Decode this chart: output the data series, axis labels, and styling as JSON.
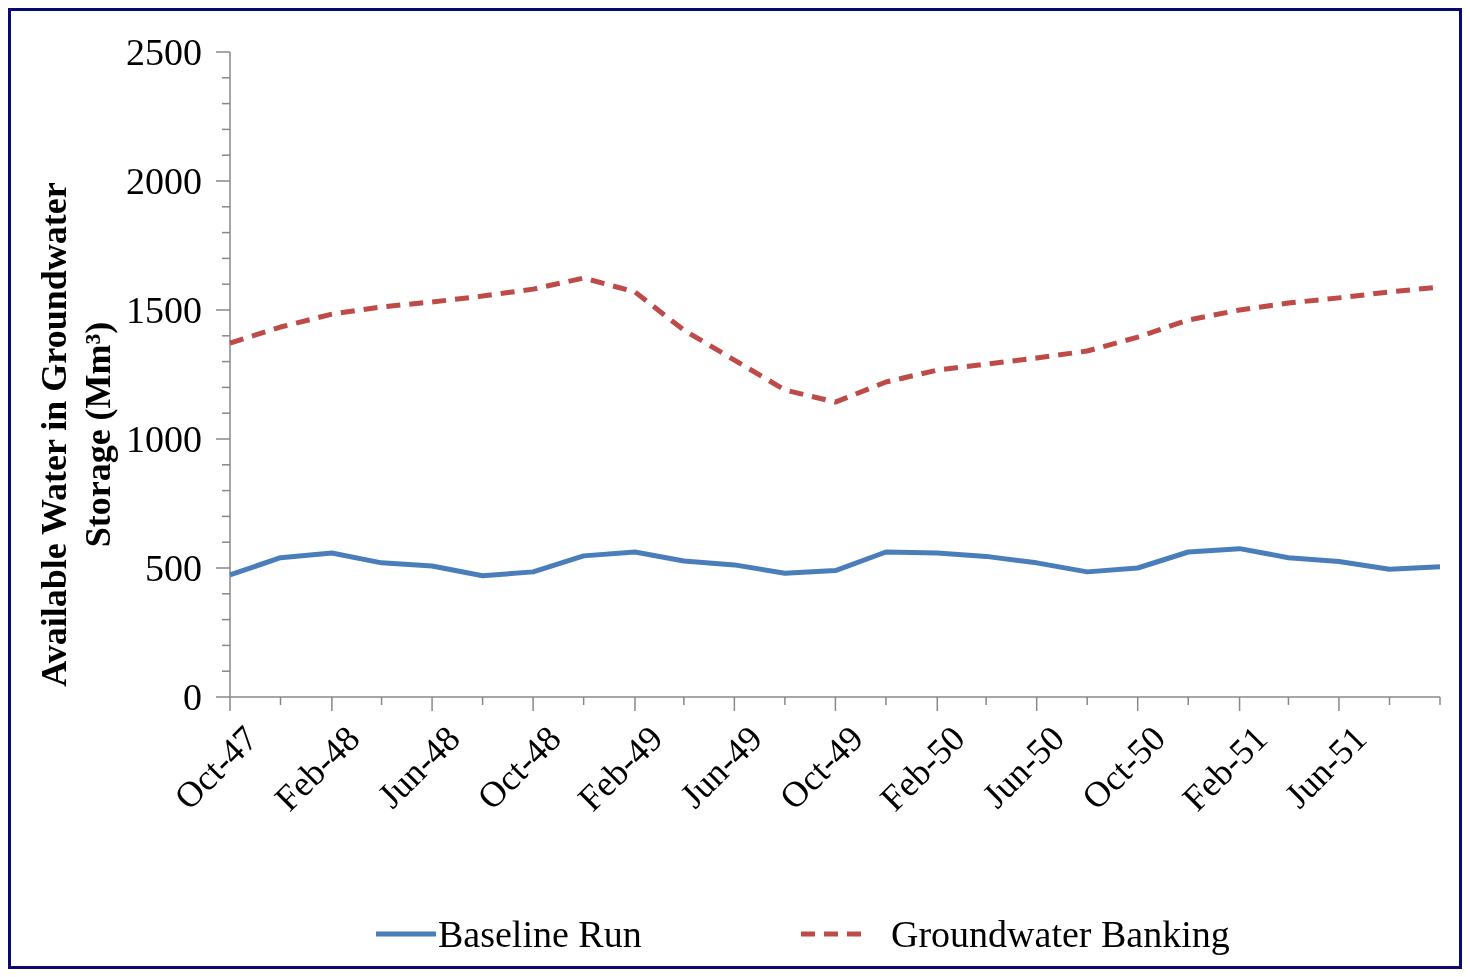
{
  "chart_data": {
    "type": "line",
    "ylabel": "Available Water in Groundwater Storage (Mm³)",
    "x": [
      "1947-10",
      "1947-12",
      "1948-02",
      "1948-04",
      "1948-06",
      "1948-08",
      "1948-10",
      "1948-12",
      "1949-02",
      "1949-04",
      "1949-06",
      "1949-08",
      "1949-10",
      "1949-12",
      "1950-02",
      "1950-04",
      "1950-06",
      "1950-08",
      "1950-10",
      "1950-12",
      "1951-02",
      "1951-04",
      "1951-06",
      "1951-08",
      "1951-10"
    ],
    "series": [
      {
        "name": "Baseline Run",
        "color": "#4a7ebb",
        "line_style": "solid",
        "values": [
          473,
          540,
          558,
          520,
          508,
          470,
          485,
          547,
          562,
          527,
          512,
          480,
          490,
          562,
          558,
          545,
          520,
          485,
          500,
          562,
          575,
          540,
          525,
          495,
          505
        ]
      },
      {
        "name": "Groundwater Banking",
        "color": "#be4b48",
        "line_style": "dashed",
        "values": [
          1372,
          1434,
          1484,
          1512,
          1531,
          1554,
          1581,
          1624,
          1570,
          1422,
          1306,
          1190,
          1143,
          1221,
          1267,
          1290,
          1314,
          1341,
          1395,
          1461,
          1500,
          1527,
          1547,
          1570,
          1589
        ]
      }
    ],
    "xlim": [
      "1947-10",
      "1951-10"
    ],
    "xticks": [
      {
        "value": "1947-10",
        "label": "Oct-47"
      },
      {
        "value": "1947-12",
        "label": null
      },
      {
        "value": "1948-02",
        "label": "Feb-48"
      },
      {
        "value": "1948-04",
        "label": null
      },
      {
        "value": "1948-06",
        "label": "Jun-48"
      },
      {
        "value": "1948-08",
        "label": null
      },
      {
        "value": "1948-10",
        "label": "Oct-48"
      },
      {
        "value": "1948-12",
        "label": null
      },
      {
        "value": "1949-02",
        "label": "Feb-49"
      },
      {
        "value": "1949-04",
        "label": null
      },
      {
        "value": "1949-06",
        "label": "Jun-49"
      },
      {
        "value": "1949-08",
        "label": null
      },
      {
        "value": "1949-10",
        "label": "Oct-49"
      },
      {
        "value": "1949-12",
        "label": null
      },
      {
        "value": "1950-02",
        "label": "Feb-50"
      },
      {
        "value": "1950-04",
        "label": null
      },
      {
        "value": "1950-06",
        "label": "Jun-50"
      },
      {
        "value": "1950-08",
        "label": null
      },
      {
        "value": "1950-10",
        "label": "Oct-50"
      },
      {
        "value": "1950-12",
        "label": null
      },
      {
        "value": "1951-02",
        "label": "Feb-51"
      },
      {
        "value": "1951-04",
        "label": null
      },
      {
        "value": "1951-06",
        "label": "Jun-51"
      },
      {
        "value": "1951-08",
        "label": null
      },
      {
        "value": "1951-10",
        "label": null
      }
    ],
    "ylim": [
      0,
      2500
    ],
    "yticks": [
      0,
      {
        "value": 100,
        "label": null
      },
      {
        "value": 200,
        "label": null
      },
      {
        "value": 300,
        "label": null
      },
      {
        "value": 400,
        "label": null
      },
      500,
      {
        "value": 600,
        "label": null
      },
      {
        "value": 700,
        "label": null
      },
      {
        "value": 800,
        "label": null
      },
      {
        "value": 900,
        "label": null
      },
      1000,
      {
        "value": 1100,
        "label": null
      },
      {
        "value": 1200,
        "label": null
      },
      {
        "value": 1300,
        "label": null
      },
      {
        "value": 1400,
        "label": null
      },
      1500,
      {
        "value": 1600,
        "label": null
      },
      {
        "value": 1700,
        "label": null
      },
      {
        "value": 1800,
        "label": null
      },
      {
        "value": 1900,
        "label": null
      },
      2000,
      {
        "value": 2100,
        "label": null
      },
      {
        "value": 2200,
        "label": null
      },
      {
        "value": 2300,
        "label": null
      },
      {
        "value": 2400,
        "label": null
      },
      2500
    ],
    "grid": false,
    "legend": "bottom",
    "marker": "none"
  }
}
